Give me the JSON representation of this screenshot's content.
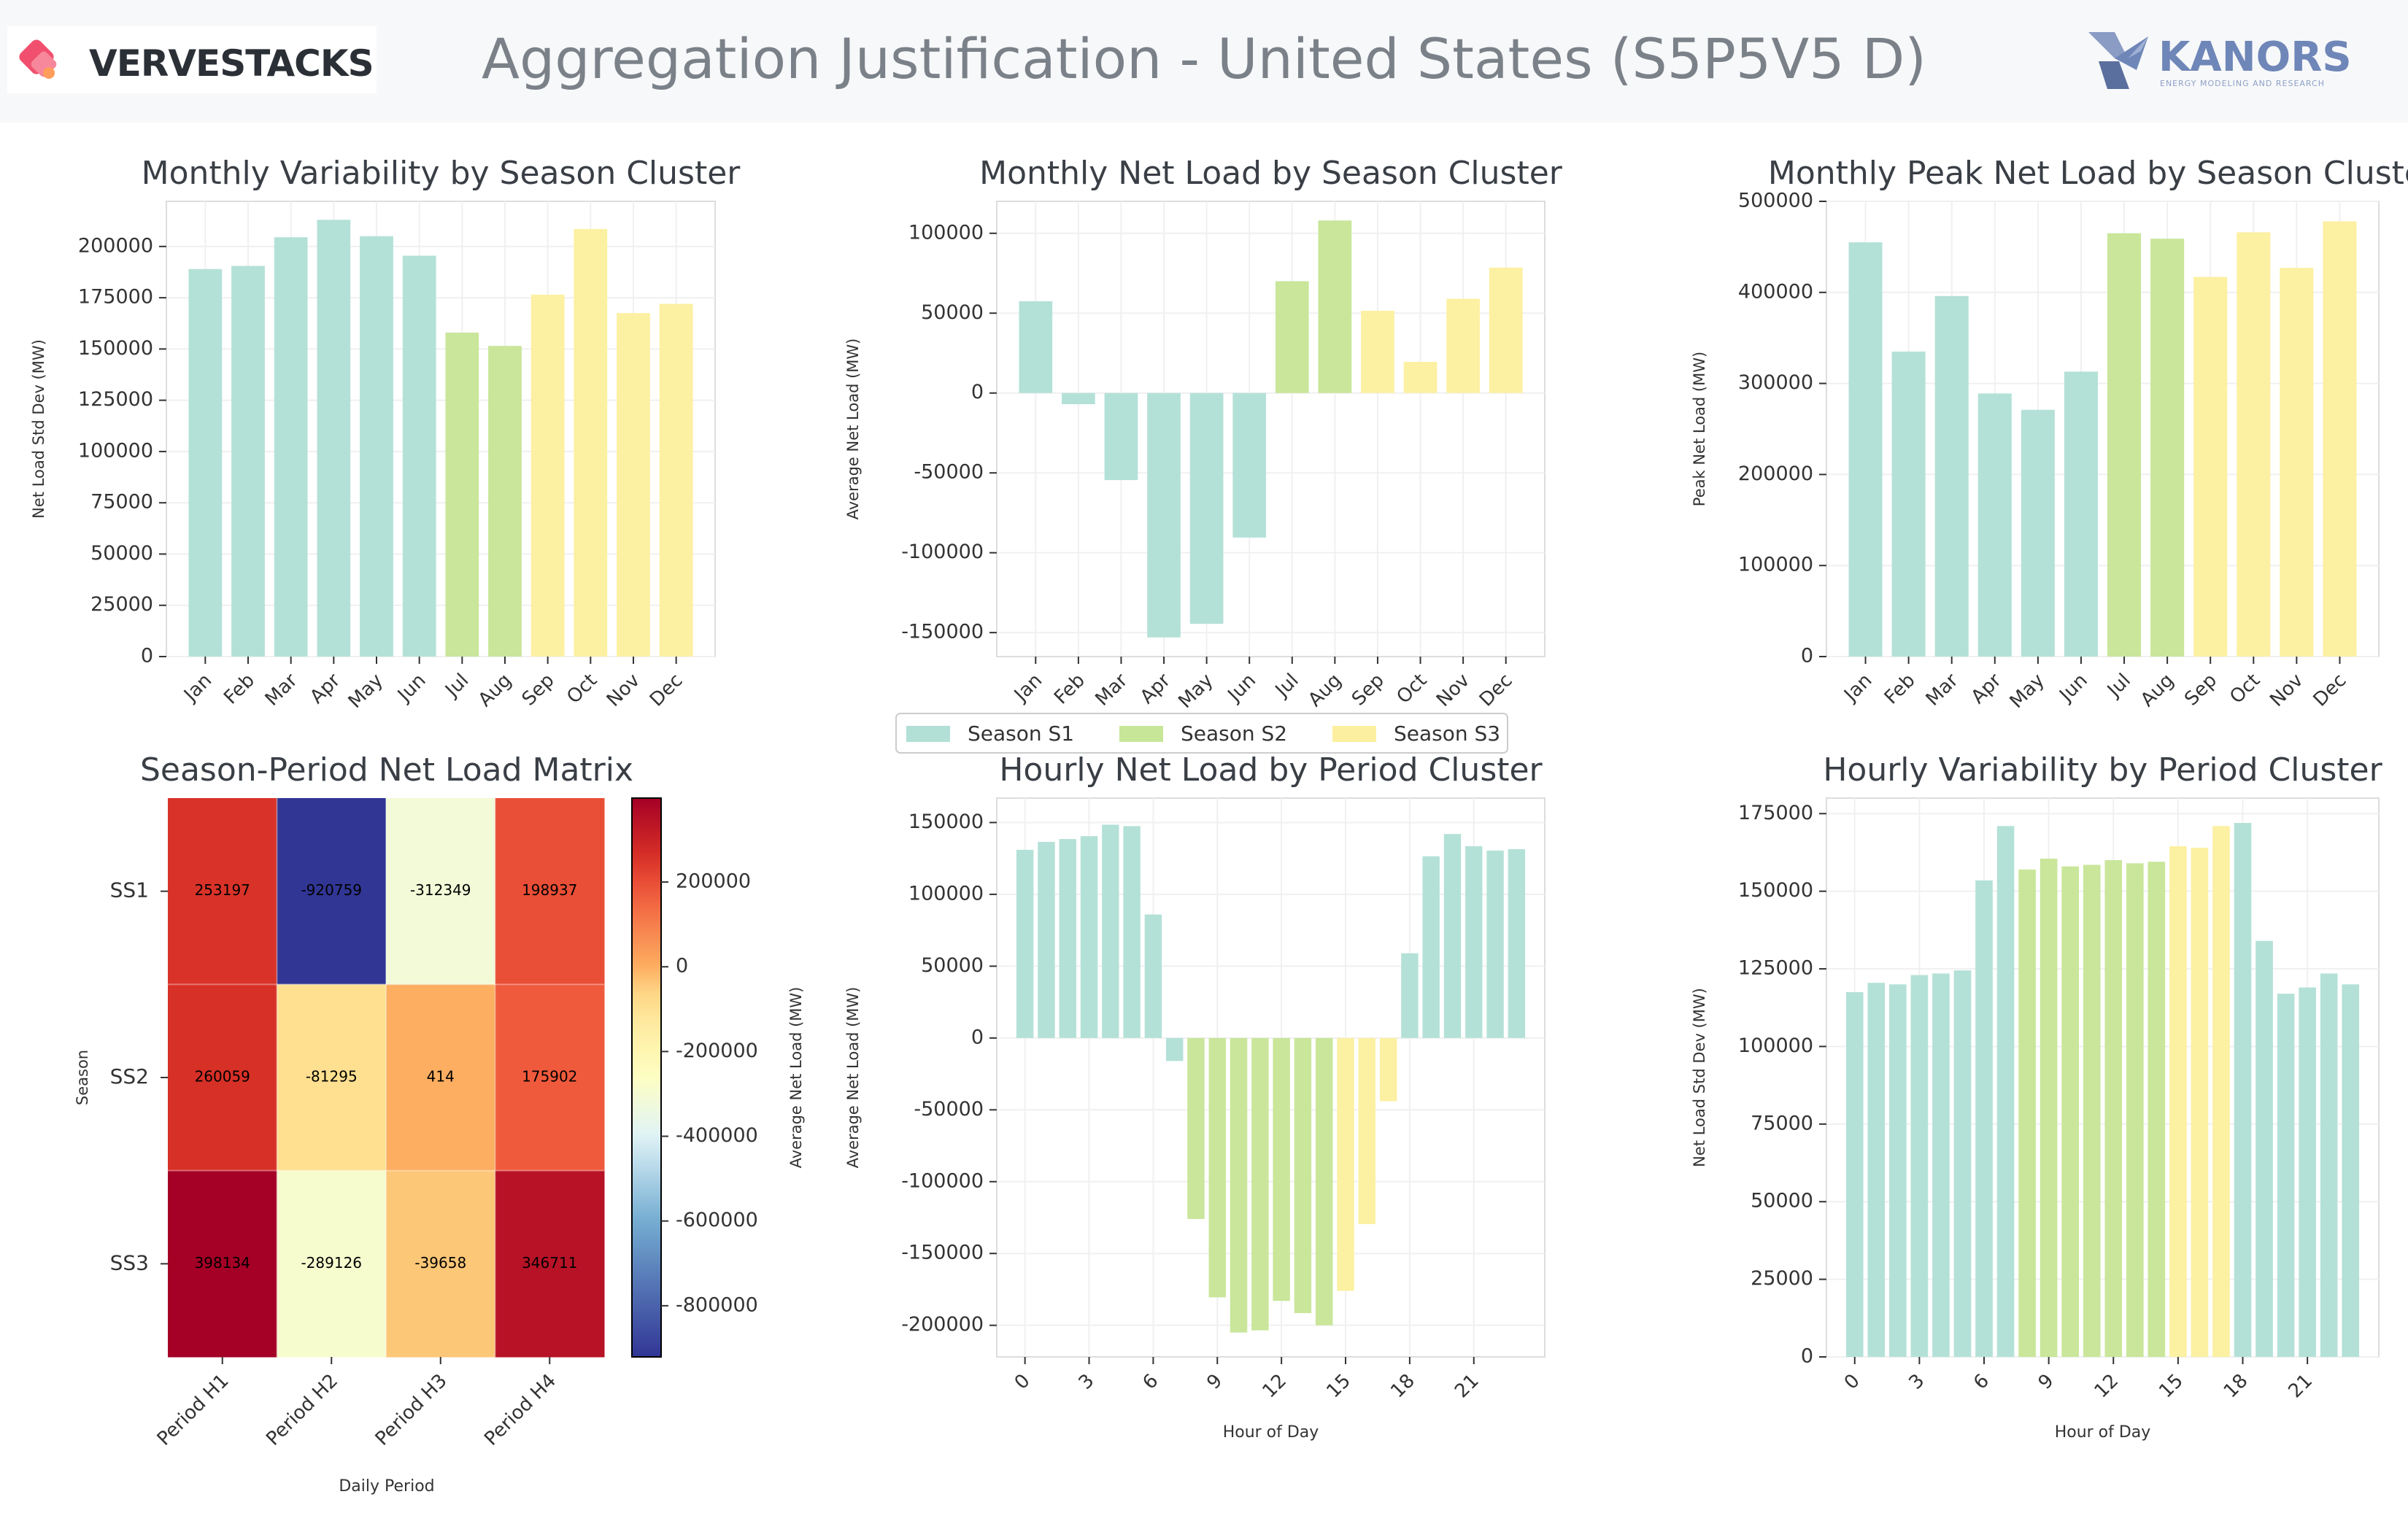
{
  "header": {
    "title": "Aggregation Justification - United States (S5P5V5 D)",
    "brand_left": "VERVESTACKS",
    "brand_right": "KANORS",
    "brand_right_tagline": "ENERGY MODELING AND RESEARCH"
  },
  "colors": {
    "season_s1": "#b2e0d6",
    "season_s2": "#c8e698",
    "season_s3": "#fcf0a0",
    "brand_pink": "#f0506e",
    "kanors_blue": "#6f86b8"
  },
  "legend": [
    "Season S1",
    "Season S2",
    "Season S3"
  ],
  "chart_data": [
    {
      "id": "monthly-variability",
      "type": "bar",
      "title": "Monthly Variability by Season Cluster",
      "xlabel": "",
      "ylabel": "Net Load Std Dev (MW)",
      "ylim": [
        0,
        222000
      ],
      "yticks": [
        0,
        25000,
        50000,
        75000,
        100000,
        125000,
        150000,
        175000,
        200000
      ],
      "categories": [
        "Jan",
        "Feb",
        "Mar",
        "Apr",
        "May",
        "Jun",
        "Jul",
        "Aug",
        "Sep",
        "Oct",
        "Nov",
        "Dec"
      ],
      "values": [
        189000,
        190500,
        204500,
        213000,
        205000,
        195500,
        158000,
        151500,
        176500,
        208500,
        167500,
        172000
      ],
      "seasons": [
        1,
        1,
        1,
        1,
        1,
        1,
        2,
        2,
        3,
        3,
        3,
        3
      ]
    },
    {
      "id": "monthly-net-load",
      "type": "bar",
      "title": "Monthly Net Load by Season Cluster",
      "xlabel": "",
      "ylabel": "Average Net Load (MW)",
      "ylim": [
        -165000,
        120000
      ],
      "yticks": [
        -150000,
        -100000,
        -50000,
        0,
        50000,
        100000
      ],
      "categories": [
        "Jan",
        "Feb",
        "Mar",
        "Apr",
        "May",
        "Jun",
        "Jul",
        "Aug",
        "Sep",
        "Oct",
        "Nov",
        "Dec"
      ],
      "values": [
        57500,
        -7000,
        -54500,
        -153000,
        -144500,
        -90500,
        70000,
        108000,
        51500,
        19500,
        59000,
        78500
      ],
      "seasons": [
        1,
        1,
        1,
        1,
        1,
        1,
        2,
        2,
        3,
        3,
        3,
        3
      ]
    },
    {
      "id": "monthly-peak",
      "type": "bar",
      "title": "Monthly Peak Net Load by Season Cluster",
      "xlabel": "",
      "ylabel": "Peak Net Load (MW)",
      "ylim": [
        0,
        500000
      ],
      "yticks": [
        0,
        100000,
        200000,
        300000,
        400000,
        500000
      ],
      "categories": [
        "Jan",
        "Feb",
        "Mar",
        "Apr",
        "May",
        "Jun",
        "Jul",
        "Aug",
        "Sep",
        "Oct",
        "Nov",
        "Dec"
      ],
      "values": [
        455000,
        335000,
        396000,
        289000,
        271000,
        313000,
        465000,
        459000,
        417000,
        466000,
        427000,
        478000
      ],
      "seasons": [
        1,
        1,
        1,
        1,
        1,
        1,
        2,
        2,
        3,
        3,
        3,
        3
      ]
    },
    {
      "id": "season-period-matrix",
      "type": "heatmap",
      "title": "Season-Period Net Load Matrix",
      "xlabel": "Daily Period",
      "ylabel": "Season",
      "x_categories": [
        "Period H1",
        "Period H2",
        "Period H3",
        "Period H4"
      ],
      "y_categories": [
        "SS1",
        "SS2",
        "SS3"
      ],
      "values": [
        [
          253197,
          -920759,
          -312349,
          198937
        ],
        [
          260059,
          -81295,
          414,
          175902
        ],
        [
          398134,
          -289126,
          -39658,
          346711
        ]
      ],
      "colorbar_label": "Average Net Load (MW)",
      "colorbar_range": [
        -920759,
        398134
      ],
      "colorbar_ticks": [
        -800000,
        -600000,
        -400000,
        -200000,
        0,
        200000
      ]
    },
    {
      "id": "hourly-net-load",
      "type": "bar",
      "title": "Hourly Net Load by Period Cluster",
      "xlabel": "Hour of Day",
      "ylabel": "Average Net Load (MW)",
      "ylim": [
        -222000,
        167000
      ],
      "yticks": [
        -200000,
        -150000,
        -100000,
        -50000,
        0,
        50000,
        100000,
        150000
      ],
      "xticks": [
        0,
        3,
        6,
        9,
        12,
        15,
        18,
        21
      ],
      "values": [
        131000,
        136500,
        138500,
        140500,
        148500,
        147500,
        86000,
        -16000,
        -126000,
        -180500,
        -205000,
        -203500,
        -183000,
        -191500,
        -200000,
        -176000,
        -129500,
        -44000,
        59000,
        126500,
        142000,
        133500,
        130500,
        131500
      ],
      "clusters": [
        1,
        1,
        1,
        1,
        1,
        1,
        1,
        1,
        2,
        2,
        2,
        2,
        2,
        2,
        2,
        3,
        3,
        3,
        1,
        1,
        1,
        1,
        1,
        1
      ]
    },
    {
      "id": "hourly-variability",
      "type": "bar",
      "title": "Hourly Variability by Period Cluster",
      "xlabel": "Hour of Day",
      "ylabel": "Net Load Std Dev (MW)",
      "ylim": [
        0,
        180000
      ],
      "yticks": [
        0,
        25000,
        50000,
        75000,
        100000,
        125000,
        150000,
        175000
      ],
      "xticks": [
        0,
        3,
        6,
        9,
        12,
        15,
        18,
        21
      ],
      "values": [
        117500,
        120500,
        120000,
        123000,
        123500,
        124500,
        153500,
        171000,
        157000,
        160500,
        158000,
        158500,
        160000,
        159000,
        159500,
        164500,
        164000,
        171000,
        172000,
        134000,
        117000,
        119000,
        123500,
        120000
      ],
      "clusters": [
        1,
        1,
        1,
        1,
        1,
        1,
        1,
        1,
        2,
        2,
        2,
        2,
        2,
        2,
        2,
        3,
        3,
        3,
        1,
        1,
        1,
        1,
        1,
        1
      ]
    }
  ]
}
